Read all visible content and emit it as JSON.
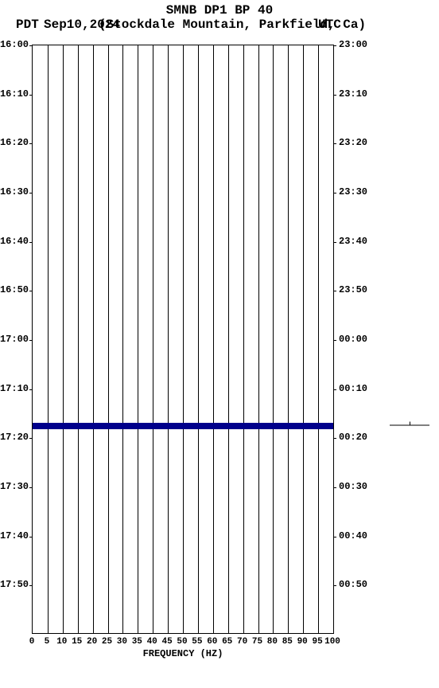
{
  "header": {
    "title": "SMNB DP1 BP 40",
    "left_tz": "PDT",
    "date": "Sep10,2024",
    "location": "(Stockdale Mountain, Parkfield, Ca)",
    "right_tz": "UTC",
    "title_fontsize": 13,
    "subtitle_fontsize": 13
  },
  "chart": {
    "type": "spectrogram-timeline",
    "background_color": "#ffffff",
    "border_color": "#000000",
    "grid_color": "#000000",
    "x": {
      "title": "FREQUENCY (HZ)",
      "min": 0,
      "max": 100,
      "tick_step": 5,
      "labels": [
        "0",
        "5",
        "10",
        "15",
        "20",
        "25",
        "30",
        "35",
        "40",
        "45",
        "50",
        "55",
        "60",
        "65",
        "70",
        "75",
        "80",
        "85",
        "90",
        "95",
        "100"
      ],
      "label_fontsize": 11
    },
    "y_left": {
      "tz": "PDT",
      "start": "16:00",
      "end": "18:00",
      "tick_step_min": 10,
      "labels": [
        "16:00",
        "16:10",
        "16:20",
        "16:30",
        "16:40",
        "16:50",
        "17:00",
        "17:10",
        "17:20",
        "17:30",
        "17:40",
        "17:50"
      ],
      "label_fontsize": 12
    },
    "y_right": {
      "tz": "UTC",
      "start": "23:00",
      "end": "01:00",
      "tick_step_min": 10,
      "labels": [
        "23:00",
        "23:10",
        "23:20",
        "23:30",
        "23:40",
        "23:50",
        "00:00",
        "00:10",
        "00:20",
        "00:30",
        "00:40",
        "00:50"
      ],
      "label_fontsize": 12
    },
    "data_band": {
      "color": "#00008b",
      "thickness_px": 8,
      "time_fraction": 0.6458
    },
    "legend_mark": {
      "enabled": true,
      "color": "#000000"
    }
  }
}
